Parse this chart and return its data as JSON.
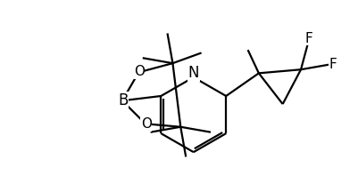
{
  "background_color": "#ffffff",
  "line_color": "#000000",
  "lw": 1.6,
  "fs": 11,
  "xlim": [
    -1.55,
    1.25
  ],
  "ylim": [
    -0.82,
    0.78
  ]
}
